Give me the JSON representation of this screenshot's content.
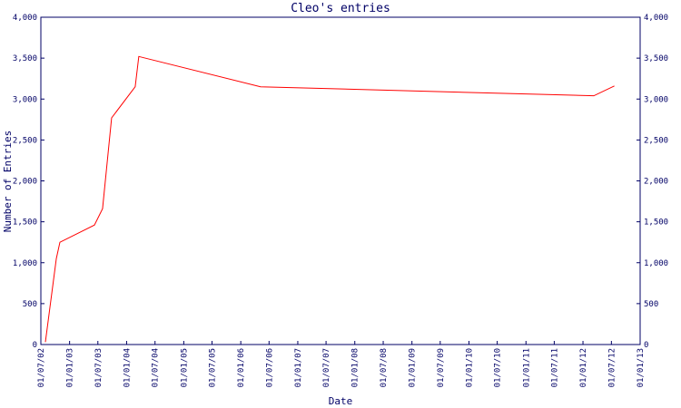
{
  "chart_data": {
    "type": "line",
    "title": "Cleo's entries",
    "x_label": "Date",
    "y_label": "Number of Entries",
    "series": [
      {
        "name": "Entries",
        "color": "#ff0000",
        "x": [
          "2002-07-30",
          "2002-10-08",
          "2002-10-31",
          "2003-06-09",
          "2003-07-31",
          "2003-09-27",
          "2004-02-25",
          "2004-03-19",
          "2006-05-08",
          "2012-03-10",
          "2012-07-20"
        ],
        "values": [
          30,
          1050,
          1250,
          1460,
          1660,
          2770,
          3150,
          3520,
          3150,
          3040,
          3160
        ]
      }
    ],
    "xlim": [
      "2002-07-01",
      "2013-01-01"
    ],
    "xticks": [
      {
        "value": "2002-07-01",
        "label": "01/07/02"
      },
      {
        "value": "2003-01-01",
        "label": "01/01/03"
      },
      {
        "value": "2003-07-01",
        "label": "01/07/03"
      },
      {
        "value": "2004-01-01",
        "label": "01/01/04"
      },
      {
        "value": "2004-07-01",
        "label": "01/07/04"
      },
      {
        "value": "2005-01-01",
        "label": "01/01/05"
      },
      {
        "value": "2005-07-01",
        "label": "01/07/05"
      },
      {
        "value": "2006-01-01",
        "label": "01/01/06"
      },
      {
        "value": "2006-07-01",
        "label": "01/07/06"
      },
      {
        "value": "2007-01-01",
        "label": "01/01/07"
      },
      {
        "value": "2007-07-01",
        "label": "01/07/07"
      },
      {
        "value": "2008-01-01",
        "label": "01/01/08"
      },
      {
        "value": "2008-07-01",
        "label": "01/07/08"
      },
      {
        "value": "2009-01-01",
        "label": "01/01/09"
      },
      {
        "value": "2009-07-01",
        "label": "01/07/09"
      },
      {
        "value": "2010-01-01",
        "label": "01/01/10"
      },
      {
        "value": "2010-07-01",
        "label": "01/07/10"
      },
      {
        "value": "2011-01-01",
        "label": "01/01/11"
      },
      {
        "value": "2011-07-01",
        "label": "01/07/11"
      },
      {
        "value": "2012-01-01",
        "label": "01/01/12"
      },
      {
        "value": "2012-07-01",
        "label": "01/07/12"
      },
      {
        "value": "2013-01-01",
        "label": "01/01/13"
      }
    ],
    "ylim": [
      0,
      4000
    ],
    "yticks": [
      0,
      500,
      {
        "value": 1000,
        "label": "1,000"
      },
      {
        "value": 1500,
        "label": "1,500"
      },
      {
        "value": 2000,
        "label": "2,000"
      },
      {
        "value": 2500,
        "label": "2,500"
      },
      {
        "value": 3000,
        "label": "3,000"
      },
      {
        "value": 3500,
        "label": "3,500"
      },
      {
        "value": 4000,
        "label": "4,000"
      }
    ],
    "y2lim": [
      0,
      4000
    ],
    "y2ticks": [
      0,
      500,
      {
        "value": 1000,
        "label": "1,000"
      },
      {
        "value": 1500,
        "label": "1,500"
      },
      {
        "value": 2000,
        "label": "2,000"
      },
      {
        "value": 2500,
        "label": "2,500"
      },
      {
        "value": 3000,
        "label": "3,000"
      },
      {
        "value": 3500,
        "label": "3,500"
      },
      {
        "value": 4000,
        "label": "4,000"
      }
    ],
    "axis_color": "#000066",
    "grid": false
  }
}
